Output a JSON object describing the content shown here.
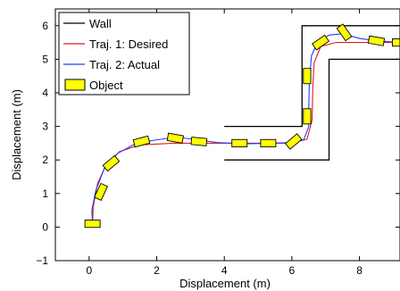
{
  "chart_data": {
    "type": "line",
    "title": "",
    "xlabel": "Displacement (m)",
    "ylabel": "Displacement (m)",
    "xlim": [
      -1,
      9.2
    ],
    "ylim": [
      -1,
      6.5
    ],
    "xticks": [
      0,
      2,
      4,
      6,
      8
    ],
    "yticks": [
      -1,
      0,
      1,
      2,
      3,
      4,
      5,
      6
    ],
    "tick_labels_x": [
      "0",
      "2",
      "4",
      "6",
      "8"
    ],
    "tick_labels_y": [
      "−1",
      "0",
      "1",
      "2",
      "3",
      "4",
      "5",
      "6"
    ],
    "grid": false,
    "legend": {
      "placement": "top-left",
      "entries": [
        {
          "label": "Wall",
          "style": "line",
          "color": "#000000"
        },
        {
          "label": "Traj. 1: Desired",
          "style": "line",
          "color": "#e31a1c"
        },
        {
          "label": "Traj. 2: Actual",
          "style": "line",
          "color": "#1f3dff"
        },
        {
          "label": "Object",
          "style": "box",
          "color": "#ffff00"
        }
      ]
    },
    "walls": [
      {
        "name": "Wall",
        "points": [
          [
            4.0,
            3.0
          ],
          [
            6.3,
            3.0
          ],
          [
            6.3,
            6.0
          ],
          [
            9.2,
            6.0
          ]
        ]
      },
      {
        "name": "Wall",
        "points": [
          [
            4.0,
            2.0
          ],
          [
            7.1,
            2.0
          ],
          [
            7.1,
            5.0
          ],
          [
            9.2,
            5.0
          ]
        ]
      }
    ],
    "series": [
      {
        "name": "Traj. 1: Desired",
        "color": "#e31a1c",
        "points": [
          [
            0.1,
            0.1
          ],
          [
            0.12,
            0.6
          ],
          [
            0.25,
            1.3
          ],
          [
            0.5,
            1.85
          ],
          [
            0.9,
            2.25
          ],
          [
            1.5,
            2.45
          ],
          [
            2.5,
            2.5
          ],
          [
            4.0,
            2.5
          ],
          [
            6.0,
            2.5
          ],
          [
            6.45,
            2.62
          ],
          [
            6.6,
            3.2
          ],
          [
            6.62,
            4.2
          ],
          [
            6.66,
            4.9
          ],
          [
            6.85,
            5.38
          ],
          [
            7.3,
            5.5
          ],
          [
            9.2,
            5.5
          ]
        ]
      },
      {
        "name": "Traj. 2: Actual",
        "color": "#1f3dff",
        "points": [
          [
            0.1,
            0.1
          ],
          [
            0.08,
            0.5
          ],
          [
            0.2,
            1.1
          ],
          [
            0.45,
            1.75
          ],
          [
            0.85,
            2.2
          ],
          [
            1.4,
            2.5
          ],
          [
            2.0,
            2.6
          ],
          [
            2.6,
            2.68
          ],
          [
            3.2,
            2.6
          ],
          [
            3.8,
            2.52
          ],
          [
            4.5,
            2.48
          ],
          [
            5.4,
            2.5
          ],
          [
            6.0,
            2.52
          ],
          [
            6.35,
            2.6
          ],
          [
            6.5,
            3.0
          ],
          [
            6.5,
            3.6
          ],
          [
            6.52,
            4.4
          ],
          [
            6.58,
            5.1
          ],
          [
            6.75,
            5.5
          ],
          [
            7.1,
            5.72
          ],
          [
            7.5,
            5.76
          ],
          [
            8.0,
            5.62
          ],
          [
            8.5,
            5.55
          ],
          [
            9.2,
            5.5
          ]
        ]
      }
    ],
    "objects": [
      {
        "x": 0.1,
        "y": 0.1,
        "angle": 0
      },
      {
        "x": 0.35,
        "y": 1.05,
        "angle": 65
      },
      {
        "x": 0.65,
        "y": 1.9,
        "angle": 40
      },
      {
        "x": 1.55,
        "y": 2.55,
        "angle": 15
      },
      {
        "x": 2.55,
        "y": 2.65,
        "angle": -10
      },
      {
        "x": 3.25,
        "y": 2.55,
        "angle": -5
      },
      {
        "x": 4.45,
        "y": 2.5,
        "angle": 0
      },
      {
        "x": 5.3,
        "y": 2.5,
        "angle": 0
      },
      {
        "x": 6.05,
        "y": 2.55,
        "angle": 40
      },
      {
        "x": 6.45,
        "y": 3.3,
        "angle": 90
      },
      {
        "x": 6.45,
        "y": 4.5,
        "angle": 90
      },
      {
        "x": 6.85,
        "y": 5.5,
        "angle": 35
      },
      {
        "x": 7.55,
        "y": 5.8,
        "angle": -55
      },
      {
        "x": 8.5,
        "y": 5.55,
        "angle": -10
      },
      {
        "x": 9.2,
        "y": 5.5,
        "angle": 0
      }
    ]
  }
}
